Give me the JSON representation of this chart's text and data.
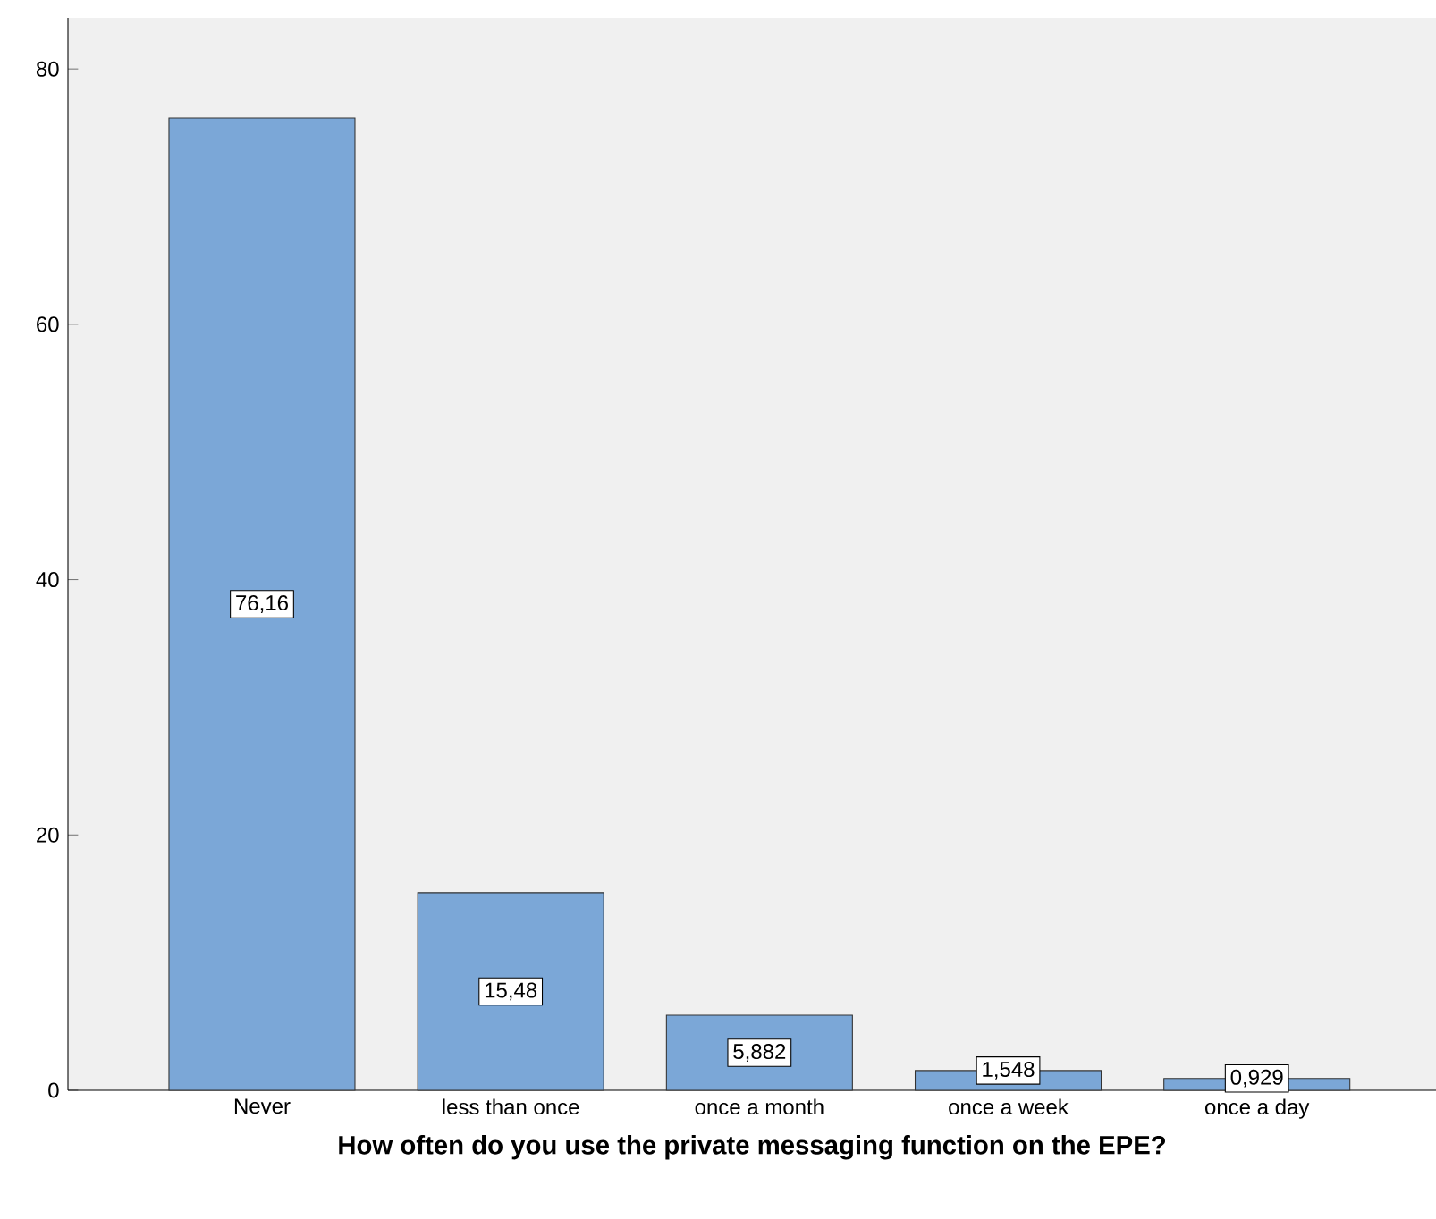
{
  "chart_data": {
    "type": "bar",
    "xlabel": "How often do you use the private messaging function on the EPE?",
    "categories": [
      "Never",
      "less than once",
      "once a month",
      "once a week",
      "once a day"
    ],
    "values": [
      76.16,
      15.48,
      5.882,
      1.548,
      0.929
    ],
    "value_labels": [
      "76,16",
      "15,48",
      "5,882",
      "1,548",
      "0,929"
    ],
    "color": "#7ba7d7",
    "ylim": [
      0,
      84
    ],
    "yticks": [
      0,
      20,
      40,
      60,
      80
    ]
  }
}
